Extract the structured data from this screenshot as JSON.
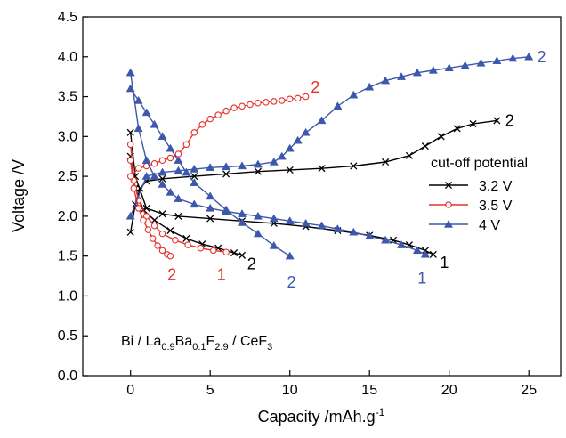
{
  "chart_data": {
    "type": "line",
    "title": "",
    "xlabel": "Capacity /mAh.g",
    "xlabel_sup": "-1",
    "ylabel": "Voltage /V",
    "xlim": [
      -3,
      27
    ],
    "ylim": [
      0,
      4.5
    ],
    "xticks": [
      0,
      5,
      10,
      15,
      20,
      25
    ],
    "yticks": [
      0.0,
      0.5,
      1.0,
      1.5,
      2.0,
      2.5,
      3.0,
      3.5,
      4.0,
      4.5
    ],
    "ytick_labels": [
      "0.0",
      "0.5",
      "1.0",
      "1.5",
      "2.0",
      "2.5",
      "3.0",
      "3.5",
      "4.0",
      "4.5"
    ],
    "legend": {
      "title": "cut-off potential",
      "placement": "right",
      "entries": [
        "3.2 V",
        "3.5 V",
        "4 V"
      ]
    },
    "annotation": {
      "parts": [
        "Bi / La",
        "0.9",
        "Ba",
        "0.1",
        "F",
        "2.9",
        " / CeF",
        "3"
      ]
    },
    "series": [
      {
        "name": "3.2 V",
        "cycle": "1",
        "segment": "discharge",
        "color": "#000000",
        "marker": "x",
        "x": [
          0,
          0.3,
          1,
          2,
          3,
          5,
          7,
          9,
          11,
          13,
          15,
          16.5,
          17.5,
          18.5,
          19
        ],
        "y": [
          3.05,
          2.5,
          2.1,
          2.03,
          2.0,
          1.97,
          1.94,
          1.91,
          1.87,
          1.82,
          1.76,
          1.7,
          1.64,
          1.57,
          1.52
        ]
      },
      {
        "name": "3.2 V",
        "cycle": "2",
        "segment": "discharge",
        "color": "#000000",
        "marker": "x",
        "x": [
          0,
          0.3,
          0.8,
          1.5,
          2.5,
          3.5,
          4.5,
          5.5,
          6.5,
          7
        ],
        "y": [
          2.75,
          2.35,
          2.08,
          1.95,
          1.82,
          1.72,
          1.65,
          1.6,
          1.54,
          1.51
        ]
      },
      {
        "name": "3.2 V",
        "cycle": "2",
        "segment": "charge",
        "color": "#000000",
        "marker": "x",
        "x": [
          0,
          0.3,
          0.6,
          1,
          2,
          4,
          6,
          8,
          10,
          12,
          14,
          16,
          17.5,
          18.5,
          19.5,
          20.5,
          21.5,
          23
        ],
        "y": [
          1.8,
          2.15,
          2.35,
          2.44,
          2.47,
          2.5,
          2.53,
          2.56,
          2.58,
          2.6,
          2.63,
          2.68,
          2.76,
          2.88,
          3.0,
          3.1,
          3.16,
          3.2
        ]
      },
      {
        "name": "3.5 V",
        "cycle": "1",
        "segment": "discharge",
        "color": "#e8302a",
        "marker": "o",
        "x": [
          0,
          0.2,
          0.5,
          1,
          1.5,
          2,
          2.8,
          3.6,
          4.4,
          5.2,
          6
        ],
        "y": [
          2.9,
          2.45,
          2.2,
          2.0,
          1.88,
          1.78,
          1.7,
          1.64,
          1.6,
          1.57,
          1.55
        ]
      },
      {
        "name": "3.5 V",
        "cycle": "2",
        "segment": "discharge",
        "color": "#e8302a",
        "marker": "o",
        "x": [
          0,
          0.2,
          0.5,
          0.8,
          1.1,
          1.4,
          1.7,
          2.0,
          2.3,
          2.5
        ],
        "y": [
          2.7,
          2.35,
          2.1,
          1.95,
          1.83,
          1.72,
          1.63,
          1.57,
          1.52,
          1.5
        ]
      },
      {
        "name": "3.5 V",
        "cycle": "2",
        "segment": "charge",
        "color": "#e8302a",
        "marker": "o",
        "x": [
          0,
          0.5,
          1,
          1.5,
          2,
          2.5,
          3,
          3.5,
          4,
          4.5,
          5,
          5.5,
          6,
          6.5,
          7,
          7.5,
          8,
          8.5,
          9,
          9.5,
          10,
          10.5,
          11
        ],
        "y": [
          2.5,
          2.6,
          2.63,
          2.66,
          2.7,
          2.73,
          2.78,
          2.9,
          3.05,
          3.15,
          3.22,
          3.27,
          3.32,
          3.36,
          3.38,
          3.4,
          3.42,
          3.43,
          3.44,
          3.45,
          3.47,
          3.48,
          3.5
        ]
      },
      {
        "name": "4 V",
        "cycle": "1",
        "segment": "discharge",
        "color": "#3d58aa",
        "marker": "^",
        "x": [
          0,
          0.5,
          1,
          1.5,
          2,
          2.5,
          3,
          4,
          5,
          6,
          7,
          8,
          9,
          10,
          11,
          12,
          13,
          14,
          15,
          16,
          17,
          18,
          18.5
        ],
        "y": [
          3.8,
          3.1,
          2.7,
          2.5,
          2.4,
          2.3,
          2.22,
          2.15,
          2.1,
          2.06,
          2.03,
          2.0,
          1.97,
          1.94,
          1.91,
          1.88,
          1.84,
          1.8,
          1.75,
          1.7,
          1.64,
          1.57,
          1.52
        ]
      },
      {
        "name": "4 V",
        "cycle": "2",
        "segment": "discharge",
        "color": "#3d58aa",
        "marker": "^",
        "x": [
          0,
          0.5,
          1,
          1.5,
          2,
          2.5,
          3,
          3.5,
          4,
          5,
          6,
          7,
          8,
          9,
          10
        ],
        "y": [
          3.6,
          3.45,
          3.3,
          3.15,
          3.0,
          2.85,
          2.7,
          2.55,
          2.42,
          2.25,
          2.08,
          1.92,
          1.78,
          1.63,
          1.5
        ]
      },
      {
        "name": "4 V",
        "cycle": "2",
        "segment": "charge",
        "color": "#3d58aa",
        "marker": "^",
        "x": [
          0,
          1,
          2,
          3,
          4,
          5,
          6,
          7,
          8,
          9,
          9.5,
          10,
          10.5,
          11,
          12,
          13,
          14,
          15,
          16,
          17,
          18,
          19,
          20,
          21,
          22,
          23,
          24,
          25
        ],
        "y": [
          2.0,
          2.5,
          2.55,
          2.57,
          2.59,
          2.61,
          2.62,
          2.63,
          2.65,
          2.68,
          2.75,
          2.85,
          2.95,
          3.05,
          3.2,
          3.38,
          3.52,
          3.62,
          3.7,
          3.75,
          3.8,
          3.83,
          3.86,
          3.89,
          3.92,
          3.95,
          3.98,
          4.0
        ]
      }
    ],
    "curve_labels": [
      {
        "text": "2",
        "x": 25.8,
        "y": 4.0,
        "color": "#3d58aa"
      },
      {
        "text": "2",
        "x": 11.6,
        "y": 3.62,
        "color": "#e8302a"
      },
      {
        "text": "2",
        "x": 23.8,
        "y": 3.2,
        "color": "#000000"
      },
      {
        "text": "1",
        "x": 19.7,
        "y": 1.42,
        "color": "#000000"
      },
      {
        "text": "1",
        "x": 18.3,
        "y": 1.22,
        "color": "#3d58aa"
      },
      {
        "text": "2",
        "x": 7.6,
        "y": 1.4,
        "color": "#000000"
      },
      {
        "text": "1",
        "x": 5.7,
        "y": 1.27,
        "color": "#e8302a"
      },
      {
        "text": "2",
        "x": 2.6,
        "y": 1.27,
        "color": "#e8302a"
      },
      {
        "text": "2",
        "x": 10.1,
        "y": 1.17,
        "color": "#3d58aa"
      }
    ]
  }
}
